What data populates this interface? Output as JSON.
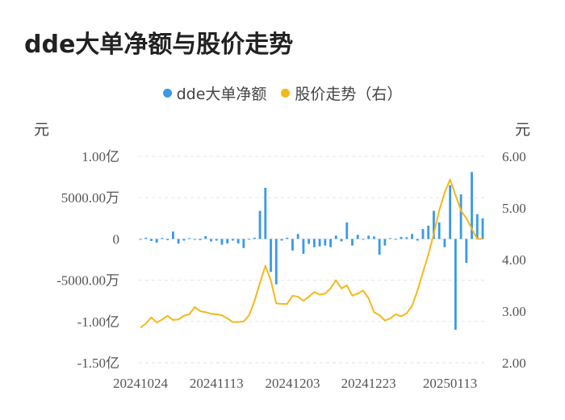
{
  "title": "dde大单净额与股价走势",
  "legend": [
    {
      "label": "dde大单净额",
      "color": "#3a9ae6"
    },
    {
      "label": "股价走势（右）",
      "color": "#f5b81b"
    }
  ],
  "units": {
    "left": "元",
    "right": "元"
  },
  "chart_data": {
    "type": "bar+line",
    "title": "dde大单净额与股价走势",
    "x_tick_labels": [
      "20241024",
      "20241113",
      "20241203",
      "20241223",
      "20250113"
    ],
    "y_left": {
      "ticks": [
        {
          "value": 10000,
          "label": "1.00亿"
        },
        {
          "value": 5000,
          "label": "5000.00万"
        },
        {
          "value": 0,
          "label": "0"
        },
        {
          "value": -5000,
          "label": "-5000.00万"
        },
        {
          "value": -10000,
          "label": "-1.00亿"
        },
        {
          "value": -15000,
          "label": "-1.50亿"
        }
      ],
      "range": [
        -15000,
        10000
      ],
      "unit": "万元"
    },
    "y_right": {
      "ticks": [
        {
          "value": 6.0,
          "label": "6.00"
        },
        {
          "value": 5.0,
          "label": "5.00"
        },
        {
          "value": 4.0,
          "label": "4.00"
        },
        {
          "value": 3.0,
          "label": "3.00"
        },
        {
          "value": 2.0,
          "label": "2.00"
        }
      ],
      "range": [
        2.0,
        6.0
      ]
    },
    "grid": true,
    "legend_position": "top-center",
    "series": [
      {
        "name": "dde大单净额",
        "type": "bar",
        "color": "#3a9ae6",
        "values": [
          -100,
          150,
          -250,
          -450,
          120,
          -150,
          900,
          -550,
          -200,
          100,
          -100,
          -150,
          350,
          -300,
          -200,
          -700,
          -550,
          -200,
          -550,
          -1100,
          -50,
          150,
          3400,
          6200,
          -4000,
          -5500,
          -200,
          150,
          -1400,
          600,
          -1800,
          -600,
          -1000,
          -900,
          -800,
          -1000,
          400,
          -300,
          2000,
          -800,
          500,
          -100,
          400,
          300,
          -1900,
          -800,
          100,
          -100,
          250,
          200,
          600,
          -200,
          1200,
          1600,
          3400,
          2000,
          -1000,
          6500,
          -11000,
          5400,
          -2900,
          8100,
          3000,
          2500
        ]
      },
      {
        "name": "股价走势（右）",
        "type": "line",
        "color": "#f5b81b",
        "values": [
          2.68,
          2.76,
          2.88,
          2.78,
          2.84,
          2.91,
          2.83,
          2.84,
          2.91,
          2.94,
          3.08,
          3.0,
          2.98,
          2.95,
          2.94,
          2.92,
          2.86,
          2.79,
          2.79,
          2.8,
          2.92,
          3.2,
          3.55,
          3.88,
          3.6,
          3.15,
          3.14,
          3.14,
          3.3,
          3.28,
          3.2,
          3.28,
          3.37,
          3.32,
          3.34,
          3.44,
          3.6,
          3.44,
          3.5,
          3.3,
          3.34,
          3.4,
          3.25,
          2.98,
          2.92,
          2.82,
          2.86,
          2.94,
          2.9,
          2.96,
          3.1,
          3.4,
          3.75,
          4.1,
          4.5,
          4.95,
          5.3,
          5.55,
          5.25,
          4.95,
          4.8,
          4.6,
          4.4,
          4.4
        ]
      }
    ]
  }
}
